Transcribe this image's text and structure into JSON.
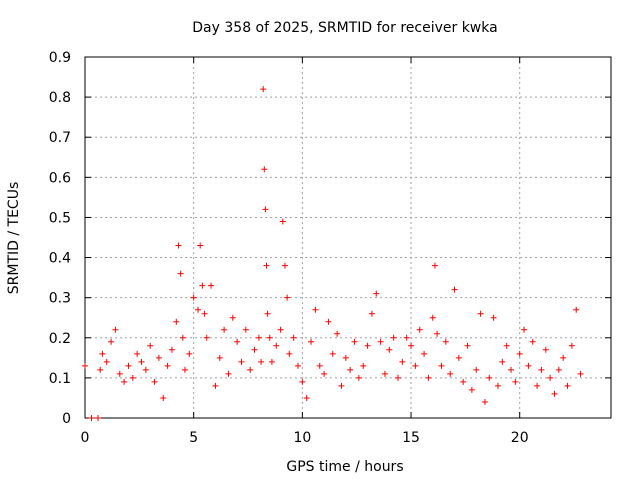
{
  "chart_data": {
    "type": "scatter",
    "title": "Day 358 of 2025, SRMTID for receiver kwka",
    "xlabel": "GPS time / hours",
    "ylabel": "SRMTID / TECUs",
    "xlim": [
      0,
      24.2
    ],
    "ylim": [
      0,
      0.9
    ],
    "x_ticks": [
      0,
      5,
      10,
      15,
      20
    ],
    "y_ticks": [
      0,
      0.1,
      0.2,
      0.3,
      0.4,
      0.5,
      0.6,
      0.7,
      0.8,
      0.9
    ],
    "grid": true,
    "marker": "+",
    "color": "#ff0000",
    "series": [
      {
        "name": "SRMTID",
        "x": [
          0.0,
          0.3,
          0.6,
          0.7,
          0.8,
          1.0,
          1.2,
          1.4,
          1.6,
          1.8,
          2.0,
          2.2,
          2.4,
          2.6,
          2.8,
          3.0,
          3.2,
          3.4,
          3.6,
          3.8,
          4.0,
          4.2,
          4.3,
          4.4,
          4.5,
          4.6,
          4.8,
          5.0,
          5.2,
          5.3,
          5.4,
          5.5,
          5.6,
          5.8,
          6.0,
          6.2,
          6.4,
          6.6,
          6.8,
          7.0,
          7.2,
          7.4,
          7.6,
          7.8,
          8.0,
          8.1,
          8.2,
          8.25,
          8.3,
          8.35,
          8.4,
          8.5,
          8.6,
          8.8,
          9.0,
          9.1,
          9.2,
          9.3,
          9.4,
          9.6,
          9.8,
          10.0,
          10.2,
          10.4,
          10.6,
          10.8,
          11.0,
          11.2,
          11.4,
          11.6,
          11.8,
          12.0,
          12.2,
          12.4,
          12.6,
          12.8,
          13.0,
          13.2,
          13.4,
          13.6,
          13.8,
          14.0,
          14.2,
          14.4,
          14.6,
          14.8,
          15.0,
          15.2,
          15.4,
          15.6,
          15.8,
          16.0,
          16.1,
          16.2,
          16.4,
          16.6,
          16.8,
          17.0,
          17.2,
          17.4,
          17.6,
          17.8,
          18.0,
          18.2,
          18.4,
          18.6,
          18.8,
          19.0,
          19.2,
          19.4,
          19.6,
          19.8,
          20.0,
          20.2,
          20.4,
          20.6,
          20.8,
          21.0,
          21.2,
          21.4,
          21.6,
          21.8,
          22.0,
          22.2,
          22.4,
          22.6,
          22.8
        ],
        "y": [
          0.13,
          0.0,
          0.0,
          0.12,
          0.16,
          0.14,
          0.19,
          0.22,
          0.11,
          0.09,
          0.13,
          0.1,
          0.16,
          0.14,
          0.12,
          0.18,
          0.09,
          0.15,
          0.05,
          0.13,
          0.17,
          0.24,
          0.43,
          0.36,
          0.2,
          0.12,
          0.16,
          0.3,
          0.27,
          0.43,
          0.33,
          0.26,
          0.2,
          0.33,
          0.08,
          0.15,
          0.22,
          0.11,
          0.25,
          0.19,
          0.14,
          0.22,
          0.12,
          0.17,
          0.2,
          0.14,
          0.82,
          0.62,
          0.52,
          0.38,
          0.26,
          0.2,
          0.14,
          0.18,
          0.22,
          0.49,
          0.38,
          0.3,
          0.16,
          0.2,
          0.13,
          0.09,
          0.05,
          0.19,
          0.27,
          0.13,
          0.11,
          0.24,
          0.16,
          0.21,
          0.08,
          0.15,
          0.12,
          0.19,
          0.1,
          0.13,
          0.18,
          0.26,
          0.31,
          0.19,
          0.11,
          0.17,
          0.2,
          0.1,
          0.14,
          0.2,
          0.18,
          0.13,
          0.22,
          0.16,
          0.1,
          0.25,
          0.38,
          0.21,
          0.13,
          0.19,
          0.11,
          0.32,
          0.15,
          0.09,
          0.18,
          0.07,
          0.12,
          0.26,
          0.04,
          0.1,
          0.25,
          0.08,
          0.14,
          0.18,
          0.12,
          0.09,
          0.16,
          0.22,
          0.13,
          0.19,
          0.08,
          0.12,
          0.17,
          0.1,
          0.06,
          0.12,
          0.15,
          0.08,
          0.18,
          0.27,
          0.11
        ]
      }
    ]
  }
}
